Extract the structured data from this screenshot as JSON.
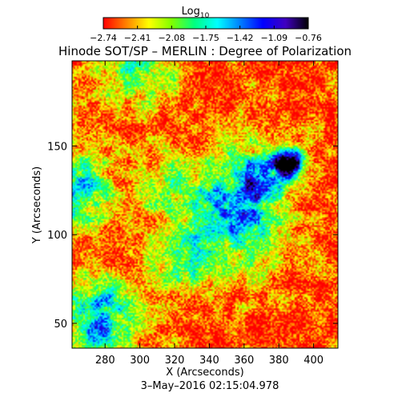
{
  "chart_data": {
    "type": "heatmap",
    "title": "Hinode SOT/SP – MERLIN : Degree of Polarization",
    "colorbar": {
      "label_main": "Log",
      "label_sub": "10",
      "range": [
        -2.74,
        -0.76
      ],
      "ticks": [
        "−2.74",
        "−2.41",
        "−2.08",
        "−1.75",
        "−1.42",
        "−1.09",
        "−0.76"
      ],
      "colormap": [
        "#ff0000",
        "#ff8000",
        "#ffff00",
        "#80ff00",
        "#00ff80",
        "#00ffff",
        "#0080ff",
        "#0000ff",
        "#4000c0",
        "#000000"
      ]
    },
    "xlabel": "X (Arcseconds)",
    "ylabel": "Y (Arcseconds)",
    "xlim": [
      261,
      414
    ],
    "ylim": [
      36,
      198
    ],
    "xticks": [
      280,
      300,
      320,
      340,
      360,
      380,
      400
    ],
    "yticks": [
      50,
      100,
      150
    ],
    "timestamp": "3–May–2016 02:15:04.978",
    "field": {
      "background_level": -2.6,
      "features": [
        {
          "x": 386,
          "y": 139,
          "level": -0.9
        },
        {
          "x": 368,
          "y": 130,
          "level": -1.6
        },
        {
          "x": 354,
          "y": 118,
          "level": -1.9
        },
        {
          "x": 278,
          "y": 54,
          "level": -1.4
        },
        {
          "x": 262,
          "y": 126,
          "level": -1.6
        },
        {
          "x": 300,
          "y": 194,
          "level": -1.9
        },
        {
          "x": 362,
          "y": 94,
          "level": -2.0
        },
        {
          "x": 326,
          "y": 86,
          "level": -1.9
        },
        {
          "x": 322,
          "y": 126,
          "level": -2.0
        }
      ]
    }
  }
}
